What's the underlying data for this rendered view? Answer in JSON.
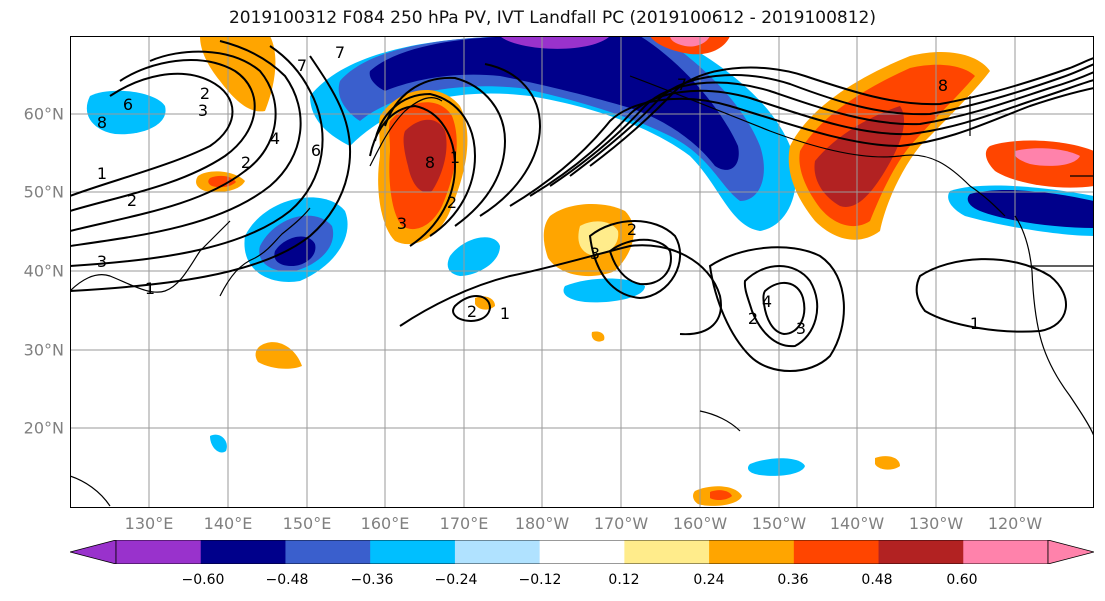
{
  "title": "2019100312 F084 250 hPa PV, IVT Landfall PC (2019100612 - 2019100812)",
  "lat_labels": [
    "60°N",
    "50°N",
    "40°N",
    "30°N",
    "20°N"
  ],
  "lon_labels": [
    "130°E",
    "140°E",
    "150°E",
    "160°E",
    "170°E",
    "180°W",
    "170°W",
    "160°W",
    "150°W",
    "140°W",
    "130°W",
    "120°W"
  ],
  "colorbar": {
    "tick_labels": [
      "−0.60",
      "−0.48",
      "−0.36",
      "−0.24",
      "−0.12",
      "0.12",
      "0.24",
      "0.36",
      "0.48",
      "0.60"
    ],
    "colors": [
      "#9932cc",
      "#00008b",
      "#3a5fcd",
      "#00bfff",
      "#b0e2ff",
      "#ffffff",
      "#ffec8b",
      "#ffa500",
      "#ff4500",
      "#b22222",
      "#ff82ab"
    ],
    "extend": "both"
  },
  "contour_labels": {
    "west_high": [
      "2",
      "3",
      "6",
      "8",
      "7",
      "1",
      "2",
      "3",
      "1",
      "2",
      "4"
    ],
    "central": [
      "6",
      "7",
      "8",
      "1",
      "2",
      "3"
    ],
    "mid_low": [
      "1",
      "2",
      "2",
      "3"
    ],
    "east_low": [
      "4",
      "3",
      "2",
      "1"
    ],
    "ne_high": [
      "8",
      "7"
    ]
  },
  "map": {
    "projection": "cylindrical",
    "gridlines": true,
    "contour_color": "#000000",
    "coastline_color": "#000000"
  }
}
